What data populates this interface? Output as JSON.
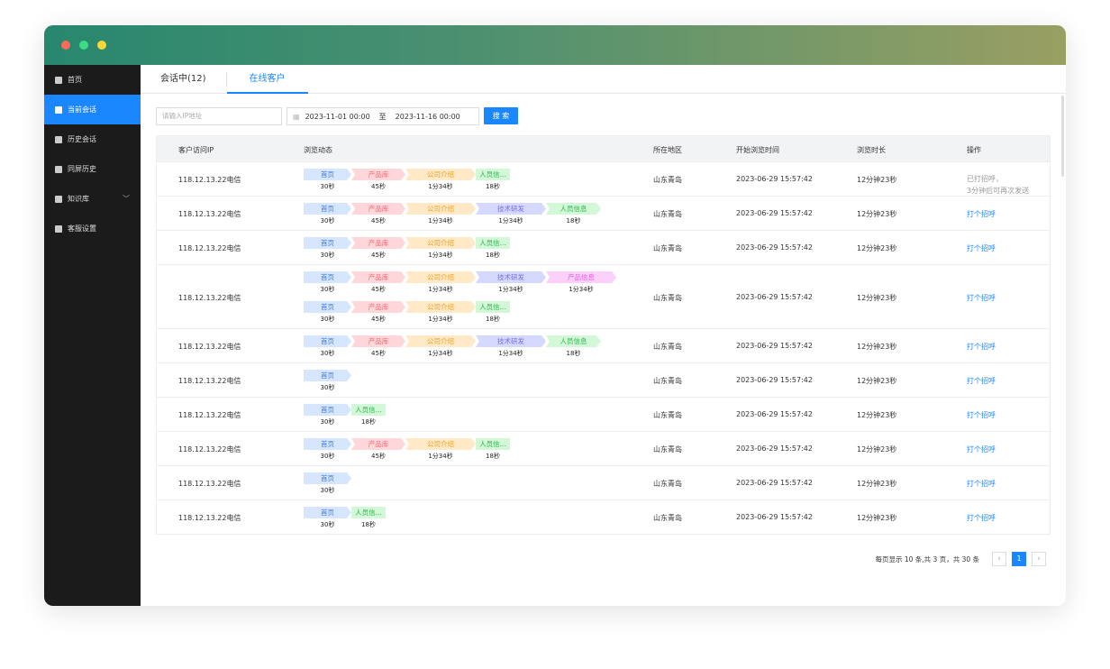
{
  "window": {
    "traffic_lights": [
      "#fe6b5a",
      "#3ddc84",
      "#f5d63c"
    ]
  },
  "sidebar": {
    "items": [
      {
        "label": "首页"
      },
      {
        "label": "当前会话",
        "active": true
      },
      {
        "label": "历史会话"
      },
      {
        "label": "同屏历史"
      },
      {
        "label": "知识库",
        "expandable": true
      },
      {
        "label": "客服设置"
      }
    ]
  },
  "tabs": [
    {
      "label": "会话中(12)"
    },
    {
      "label": "在线客户",
      "active": true
    }
  ],
  "filters": {
    "ip_placeholder": "请输入IP地址",
    "date_start": "2023-11-01 00:00",
    "date_sep": "至",
    "date_end": "2023-11-16 00:00",
    "search_label": "搜 索"
  },
  "table": {
    "headers": [
      "客户访问IP",
      "浏览动态",
      "所在地区",
      "开始浏览时间",
      "浏览时长",
      "操作"
    ],
    "rows": [
      {
        "ip": "118.12.13.22电信",
        "paths": [
          [
            [
              "首页",
              "30秒",
              "home"
            ],
            [
              "产品库",
              "45秒",
              "product"
            ],
            [
              "公司介绍",
              "1分34秒",
              "company"
            ],
            [
              "人员信...",
              "18秒",
              "short"
            ]
          ]
        ],
        "region": "山东青岛",
        "start": "2023-06-29 15:57:42",
        "duration": "12分钟23秒",
        "action": "已打招呼，\n3分钟后可再次发送",
        "action_done": true
      },
      {
        "ip": "118.12.13.22电信",
        "paths": [
          [
            [
              "首页",
              "30秒",
              "home"
            ],
            [
              "产品库",
              "45秒",
              "product"
            ],
            [
              "公司介绍",
              "1分34秒",
              "company"
            ],
            [
              "技术研发",
              "1分34秒",
              "tech"
            ],
            [
              "人员信息",
              "18秒",
              "person"
            ]
          ]
        ],
        "region": "山东青岛",
        "start": "2023-06-29 15:57:42",
        "duration": "12分钟23秒",
        "action": "打个招呼"
      },
      {
        "ip": "118.12.13.22电信",
        "paths": [
          [
            [
              "首页",
              "30秒",
              "home"
            ],
            [
              "产品库",
              "45秒",
              "product"
            ],
            [
              "公司介绍",
              "1分34秒",
              "company"
            ],
            [
              "人员信...",
              "18秒",
              "short"
            ]
          ]
        ],
        "region": "山东青岛",
        "start": "2023-06-29 15:57:42",
        "duration": "12分钟23秒",
        "action": "打个招呼"
      },
      {
        "ip": "118.12.13.22电信",
        "paths": [
          [
            [
              "首页",
              "30秒",
              "home"
            ],
            [
              "产品库",
              "45秒",
              "product"
            ],
            [
              "公司介绍",
              "1分34秒",
              "company"
            ],
            [
              "技术研发",
              "1分34秒",
              "tech"
            ],
            [
              "产品信息",
              "1分34秒",
              "prodinfo"
            ]
          ],
          [
            [
              "首页",
              "30秒",
              "home"
            ],
            [
              "产品库",
              "45秒",
              "product"
            ],
            [
              "公司介绍",
              "1分34秒",
              "company"
            ],
            [
              "人员信...",
              "18秒",
              "short"
            ]
          ]
        ],
        "region": "山东青岛",
        "start": "2023-06-29 15:57:42",
        "duration": "12分钟23秒",
        "action": "打个招呼"
      },
      {
        "ip": "118.12.13.22电信",
        "paths": [
          [
            [
              "首页",
              "30秒",
              "home"
            ],
            [
              "产品库",
              "45秒",
              "product"
            ],
            [
              "公司介绍",
              "1分34秒",
              "company"
            ],
            [
              "技术研发",
              "1分34秒",
              "tech"
            ],
            [
              "人员信息",
              "18秒",
              "person"
            ]
          ]
        ],
        "region": "山东青岛",
        "start": "2023-06-29 15:57:42",
        "duration": "12分钟23秒",
        "action": "打个招呼"
      },
      {
        "ip": "118.12.13.22电信",
        "paths": [
          [
            [
              "首页",
              "30秒",
              "home"
            ]
          ]
        ],
        "region": "山东青岛",
        "start": "2023-06-29 15:57:42",
        "duration": "12分钟23秒",
        "action": "打个招呼"
      },
      {
        "ip": "118.12.13.22电信",
        "paths": [
          [
            [
              "首页",
              "30秒",
              "home"
            ],
            [
              "人员信...",
              "18秒",
              "short"
            ]
          ]
        ],
        "region": "山东青岛",
        "start": "2023-06-29 15:57:42",
        "duration": "12分钟23秒",
        "action": "打个招呼"
      },
      {
        "ip": "118.12.13.22电信",
        "paths": [
          [
            [
              "首页",
              "30秒",
              "home"
            ],
            [
              "产品库",
              "45秒",
              "product"
            ],
            [
              "公司介绍",
              "1分34秒",
              "company"
            ],
            [
              "人员信...",
              "18秒",
              "short"
            ]
          ]
        ],
        "region": "山东青岛",
        "start": "2023-06-29 15:57:42",
        "duration": "12分钟23秒",
        "action": "打个招呼"
      },
      {
        "ip": "118.12.13.22电信",
        "paths": [
          [
            [
              "首页",
              "30秒",
              "home"
            ]
          ]
        ],
        "region": "山东青岛",
        "start": "2023-06-29 15:57:42",
        "duration": "12分钟23秒",
        "action": "打个招呼"
      },
      {
        "ip": "118.12.13.22电信",
        "paths": [
          [
            [
              "首页",
              "30秒",
              "home"
            ],
            [
              "人员信...",
              "18秒",
              "short"
            ]
          ]
        ],
        "region": "山东青岛",
        "start": "2023-06-29 15:57:42",
        "duration": "12分钟23秒",
        "action": "打个招呼"
      }
    ]
  },
  "pagination": {
    "summary": "每页显示 10 条,共 3 页，共 30 条",
    "prev": "‹",
    "current": "1",
    "next": "›"
  }
}
